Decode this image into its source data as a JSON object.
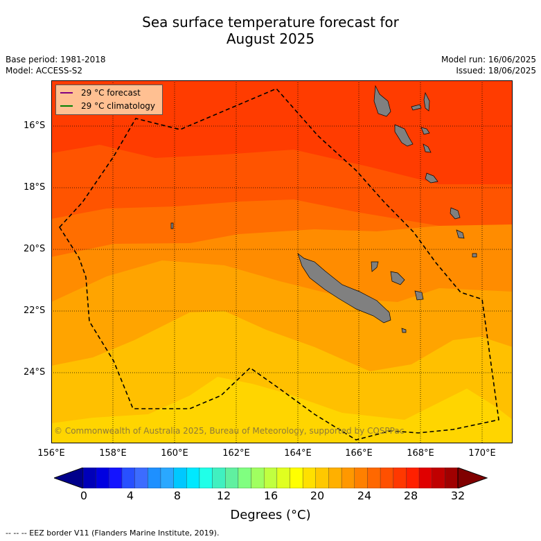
{
  "title_line1": "Sea surface temperature forecast for",
  "title_line2": "August 2025",
  "base_period": "Base period: 1981-2018",
  "model": "Model: ACCESS-S2",
  "model_run": "Model run: 16/06/2025",
  "issued": "Issued: 18/06/2025",
  "legend": {
    "forecast": "29 °C  forecast",
    "climatology": "29 °C  climatology",
    "forecast_color": "#800080",
    "climatology_color": "#008000"
  },
  "copyright": "© Commonwealth of Australia 2025, Bureau of Meteorology, supported by COSPPac",
  "lat_labels": [
    "16°S",
    "18°S",
    "20°S",
    "22°S",
    "24°S"
  ],
  "lon_labels": [
    "156°E",
    "158°E",
    "160°E",
    "162°E",
    "164°E",
    "166°E",
    "168°E",
    "170°E"
  ],
  "colorbar": {
    "ticks": [
      "0",
      "4",
      "8",
      "12",
      "16",
      "20",
      "24",
      "28",
      "32"
    ],
    "title": "Degrees (°C)",
    "colors": [
      "#00008b",
      "#0000b8",
      "#0000e0",
      "#1414ff",
      "#2850ff",
      "#3c6cff",
      "#1e90ff",
      "#2aa8ff",
      "#00c8ff",
      "#00e8ff",
      "#20ffe8",
      "#40f0c0",
      "#60f0a0",
      "#80ff80",
      "#a0ff60",
      "#c0ff40",
      "#e0ff20",
      "#ffff00",
      "#ffe000",
      "#ffc800",
      "#ffb000",
      "#ff9800",
      "#ff8000",
      "#ff6800",
      "#ff5000",
      "#ff3800",
      "#ff2000",
      "#e00000",
      "#c00000",
      "#a00000",
      "#800000"
    ]
  },
  "footnote": "--  --  -- EEZ border V11 (Flanders Marine Institute, 2019).",
  "map": {
    "band_colors": [
      "#ff3c00",
      "#ff5400",
      "#ff6e00",
      "#ff8c00",
      "#ffa400",
      "#ffc000",
      "#ffd500",
      "#ffe400"
    ],
    "land_color": "#808080"
  }
}
